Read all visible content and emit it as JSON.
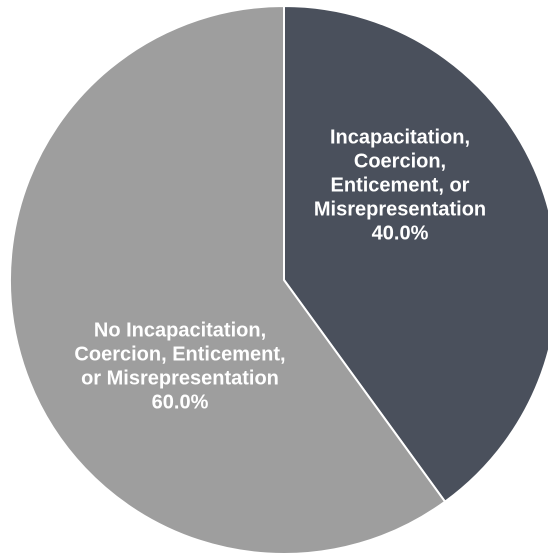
{
  "chart_data": {
    "type": "pie",
    "title": "",
    "slices": [
      {
        "label_lines": [
          "Incapacitation,",
          "Coercion,",
          "Enticement, or",
          "Misrepresentation"
        ],
        "value": 40.0,
        "value_label": "40.0%",
        "color": "#4a505c"
      },
      {
        "label_lines": [
          "No Incapacitation,",
          "Coercion, Enticement,",
          "or Misrepresentation"
        ],
        "value": 60.0,
        "value_label": "60.0%",
        "color": "#9e9e9e"
      }
    ],
    "start_angle_deg": 0,
    "direction": "clockwise",
    "legend": "none",
    "label_placement": "inside"
  }
}
